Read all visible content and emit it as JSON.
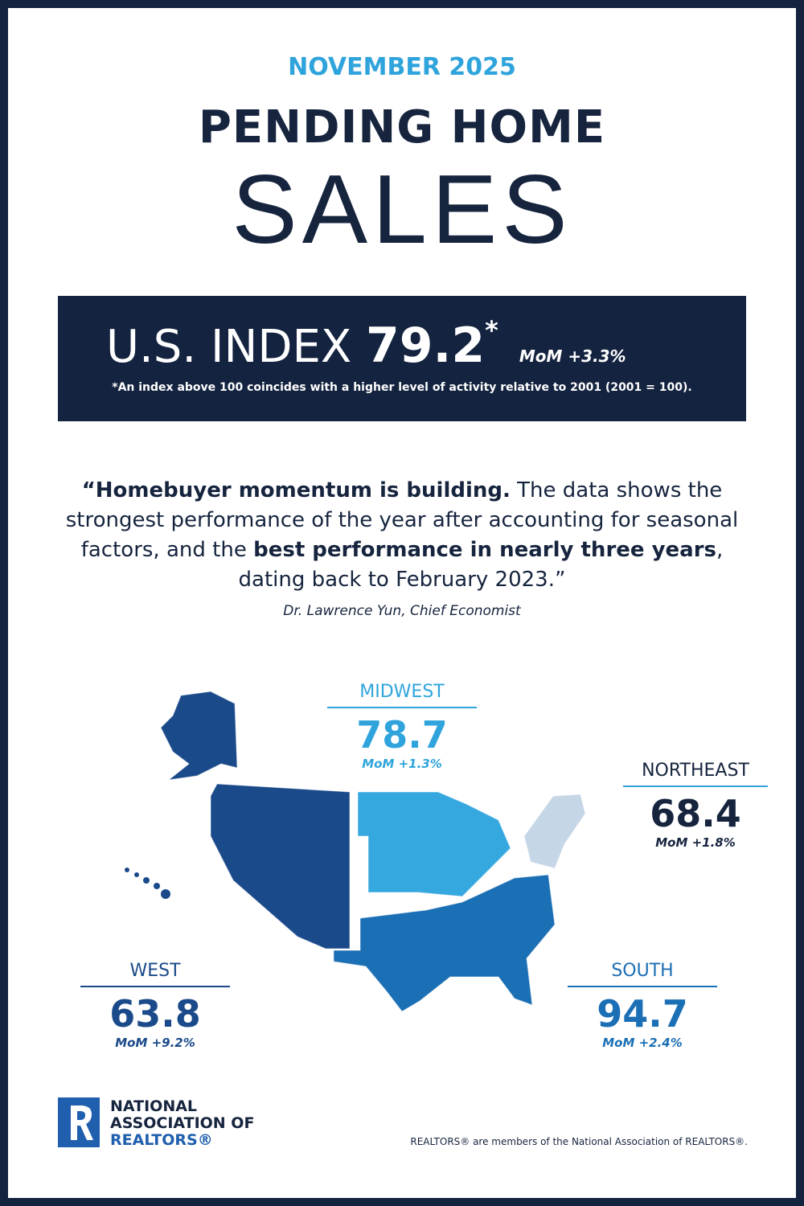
{
  "header": {
    "date": "NOVEMBER 2025",
    "title_line1": "PENDING HOME",
    "title_line2": "SALES"
  },
  "index_box": {
    "label": "U.S. INDEX",
    "value": "79.2",
    "asterisk": "*",
    "mom": "MoM +3.3%",
    "footnote": "*An index above 100 coincides with a higher level of activity relative to 2001 (2001 = 100)."
  },
  "quote": {
    "segments": [
      {
        "text": "“Homebuyer momentum is building.",
        "bold": true
      },
      {
        "text": " The data shows the strongest performance of the year after accounting for seasonal factors, and the ",
        "bold": false
      },
      {
        "text": "best performance in nearly three years",
        "bold": true
      },
      {
        "text": ", dating back to February 2023.”",
        "bold": false
      }
    ],
    "attribution": "Dr. Lawrence Yun, Chief Economist"
  },
  "regions": [
    {
      "name": "MIDWEST",
      "value": "78.7",
      "mom": "MoM +1.3%"
    },
    {
      "name": "NORTHEAST",
      "value": "68.4",
      "mom": "MoM +1.8%"
    },
    {
      "name": "WEST",
      "value": "63.8",
      "mom": "MoM +9.2%"
    },
    {
      "name": "SOUTH",
      "value": "94.7",
      "mom": "MoM +2.4%"
    }
  ],
  "logo": {
    "line1": "NATIONAL",
    "line2": "ASSOCIATION OF",
    "line3": "REALTORS®"
  },
  "footer": "REALTORS® are members of the National Association of REALTORS®."
}
